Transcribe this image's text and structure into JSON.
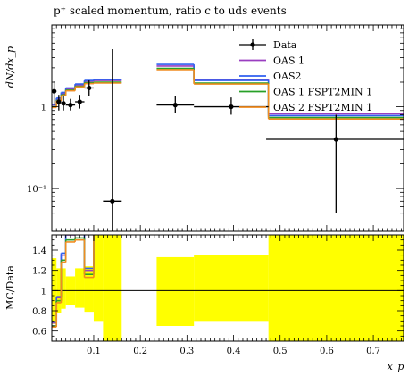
{
  "chart_data": [
    {
      "type": "line",
      "title": "p⁺ scaled momentum, ratio c to uds events",
      "ylabel": "dN/dx_p",
      "yscale": "log",
      "xlim": [
        0.01,
        0.765
      ],
      "ylim": [
        0.03,
        10.0
      ],
      "yticks": [
        {
          "value": 1,
          "label": "1"
        },
        {
          "value": 0.1,
          "label": "10⁻¹"
        }
      ],
      "legend_position": "top-right",
      "data_series": {
        "name": "Data",
        "color": "#000000",
        "points": [
          {
            "x": 0.015,
            "xerr": 0.005,
            "y": 1.55,
            "yerr": [
              0.5,
              0.5
            ]
          },
          {
            "x": 0.025,
            "xerr": 0.005,
            "y": 1.15,
            "yerr": [
              0.25,
              0.25
            ]
          },
          {
            "x": 0.035,
            "xerr": 0.005,
            "y": 1.1,
            "yerr": [
              0.2,
              0.25
            ]
          },
          {
            "x": 0.05,
            "xerr": 0.01,
            "y": 1.05,
            "yerr": [
              0.15,
              0.2
            ]
          },
          {
            "x": 0.07,
            "xerr": 0.01,
            "y": 1.15,
            "yerr": [
              0.2,
              0.25
            ]
          },
          {
            "x": 0.09,
            "xerr": 0.01,
            "y": 1.7,
            "yerr": [
              0.35,
              0.4
            ]
          },
          {
            "x": 0.14,
            "xerr": 0.02,
            "y": 0.07,
            "yerr": [
              0.06,
              5.0
            ]
          },
          {
            "x": 0.275,
            "xerr": 0.04,
            "y": 1.05,
            "yerr": [
              0.2,
              0.3
            ]
          },
          {
            "x": 0.395,
            "xerr": 0.08,
            "y": 1.0,
            "yerr": [
              0.2,
              0.3
            ]
          },
          {
            "x": 0.62,
            "xerr": 0.15,
            "y": 0.4,
            "yerr": [
              0.35,
              0.4
            ]
          }
        ]
      },
      "series": [
        {
          "name": "OAS 1",
          "color": "#9a3ec0",
          "bins": [
            [
              0.01,
              0.02,
              1.05
            ],
            [
              0.02,
              0.03,
              1.25
            ],
            [
              0.03,
              0.04,
              1.45
            ],
            [
              0.04,
              0.06,
              1.65
            ],
            [
              0.06,
              0.08,
              1.85
            ],
            [
              0.08,
              0.1,
              2.05
            ],
            [
              0.1,
              0.16,
              2.1
            ],
            [
              0.235,
              0.315,
              3.15
            ],
            [
              0.315,
              0.475,
              2.15
            ],
            [
              0.475,
              0.765,
              0.82
            ]
          ]
        },
        {
          "name": "OAS2",
          "color": "#3060f0",
          "bins": [
            [
              0.01,
              0.02,
              1.07
            ],
            [
              0.02,
              0.03,
              1.28
            ],
            [
              0.03,
              0.04,
              1.5
            ],
            [
              0.04,
              0.06,
              1.7
            ],
            [
              0.06,
              0.08,
              1.9
            ],
            [
              0.08,
              0.1,
              2.1
            ],
            [
              0.1,
              0.16,
              2.15
            ],
            [
              0.235,
              0.315,
              3.3
            ],
            [
              0.315,
              0.475,
              2.1
            ],
            [
              0.475,
              0.765,
              0.78
            ]
          ]
        },
        {
          "name": "OAS 1 FSPT2MIN 1",
          "color": "#28a028",
          "bins": [
            [
              0.01,
              0.02,
              1.0
            ],
            [
              0.02,
              0.03,
              1.2
            ],
            [
              0.03,
              0.04,
              1.4
            ],
            [
              0.04,
              0.06,
              1.6
            ],
            [
              0.06,
              0.08,
              1.78
            ],
            [
              0.08,
              0.1,
              1.97
            ],
            [
              0.1,
              0.16,
              2.0
            ],
            [
              0.235,
              0.315,
              2.95
            ],
            [
              0.315,
              0.475,
              1.95
            ],
            [
              0.475,
              0.765,
              0.74
            ]
          ]
        },
        {
          "name": "OAS 2 FSPT2MIN 1",
          "color": "#f08c20",
          "bins": [
            [
              0.01,
              0.02,
              0.98
            ],
            [
              0.02,
              0.03,
              1.18
            ],
            [
              0.03,
              0.04,
              1.37
            ],
            [
              0.04,
              0.06,
              1.57
            ],
            [
              0.06,
              0.08,
              1.75
            ],
            [
              0.08,
              0.1,
              1.92
            ],
            [
              0.1,
              0.16,
              1.95
            ],
            [
              0.235,
              0.315,
              2.85
            ],
            [
              0.315,
              0.475,
              1.9
            ],
            [
              0.475,
              0.765,
              0.71
            ]
          ]
        }
      ]
    },
    {
      "type": "line",
      "ylabel": "MC/Data",
      "xlabel": "x_p",
      "xlim": [
        0.01,
        0.765
      ],
      "ylim": [
        0.5,
        1.55
      ],
      "yticks": [
        0.6,
        0.8,
        1,
        1.2,
        1.4
      ],
      "xticks": [
        0.1,
        0.2,
        0.3,
        0.4,
        0.5,
        0.6,
        0.7
      ],
      "reference_line": 1,
      "band_color": "#ffff00",
      "band": [
        [
          0.01,
          0.02,
          0.67,
          1.32
        ],
        [
          0.02,
          0.03,
          0.78,
          1.22
        ],
        [
          0.03,
          0.04,
          0.82,
          1.22
        ],
        [
          0.04,
          0.06,
          0.86,
          1.14
        ],
        [
          0.06,
          0.08,
          0.83,
          1.22
        ],
        [
          0.08,
          0.1,
          0.79,
          1.24
        ],
        [
          0.1,
          0.12,
          0.7,
          1.55
        ],
        [
          0.12,
          0.16,
          0.45,
          1.55
        ],
        [
          0.235,
          0.315,
          0.65,
          1.33
        ],
        [
          0.315,
          0.475,
          0.7,
          1.35
        ],
        [
          0.475,
          0.765,
          0.45,
          1.55
        ]
      ],
      "ratios": [
        {
          "name": "OAS 1",
          "color": "#9a3ec0",
          "bins": [
            [
              0.01,
              0.02,
              0.68
            ],
            [
              0.02,
              0.03,
              0.93
            ],
            [
              0.03,
              0.04,
              1.35
            ],
            [
              0.04,
              0.06,
              1.55
            ],
            [
              0.06,
              0.08,
              1.58
            ],
            [
              0.08,
              0.1,
              1.2
            ],
            [
              0.1,
              0.16,
              1.6
            ]
          ]
        },
        {
          "name": "OAS2",
          "color": "#3060f0",
          "bins": [
            [
              0.01,
              0.02,
              0.69
            ],
            [
              0.02,
              0.03,
              0.94
            ],
            [
              0.03,
              0.04,
              1.37
            ],
            [
              0.04,
              0.06,
              1.58
            ],
            [
              0.06,
              0.08,
              1.6
            ],
            [
              0.08,
              0.1,
              1.22
            ],
            [
              0.1,
              0.16,
              1.6
            ]
          ]
        },
        {
          "name": "OAS 1 FSPT2MIN 1",
          "color": "#28a028",
          "bins": [
            [
              0.01,
              0.02,
              0.65
            ],
            [
              0.02,
              0.03,
              0.9
            ],
            [
              0.03,
              0.04,
              1.3
            ],
            [
              0.04,
              0.06,
              1.5
            ],
            [
              0.06,
              0.08,
              1.52
            ],
            [
              0.08,
              0.1,
              1.16
            ],
            [
              0.1,
              0.16,
              1.6
            ]
          ]
        },
        {
          "name": "OAS 2 FSPT2MIN 1",
          "color": "#f08c20",
          "bins": [
            [
              0.01,
              0.02,
              0.64
            ],
            [
              0.02,
              0.03,
              0.88
            ],
            [
              0.03,
              0.04,
              1.28
            ],
            [
              0.04,
              0.06,
              1.48
            ],
            [
              0.06,
              0.08,
              1.5
            ],
            [
              0.08,
              0.1,
              1.13
            ],
            [
              0.1,
              0.16,
              1.6
            ]
          ]
        }
      ]
    }
  ]
}
